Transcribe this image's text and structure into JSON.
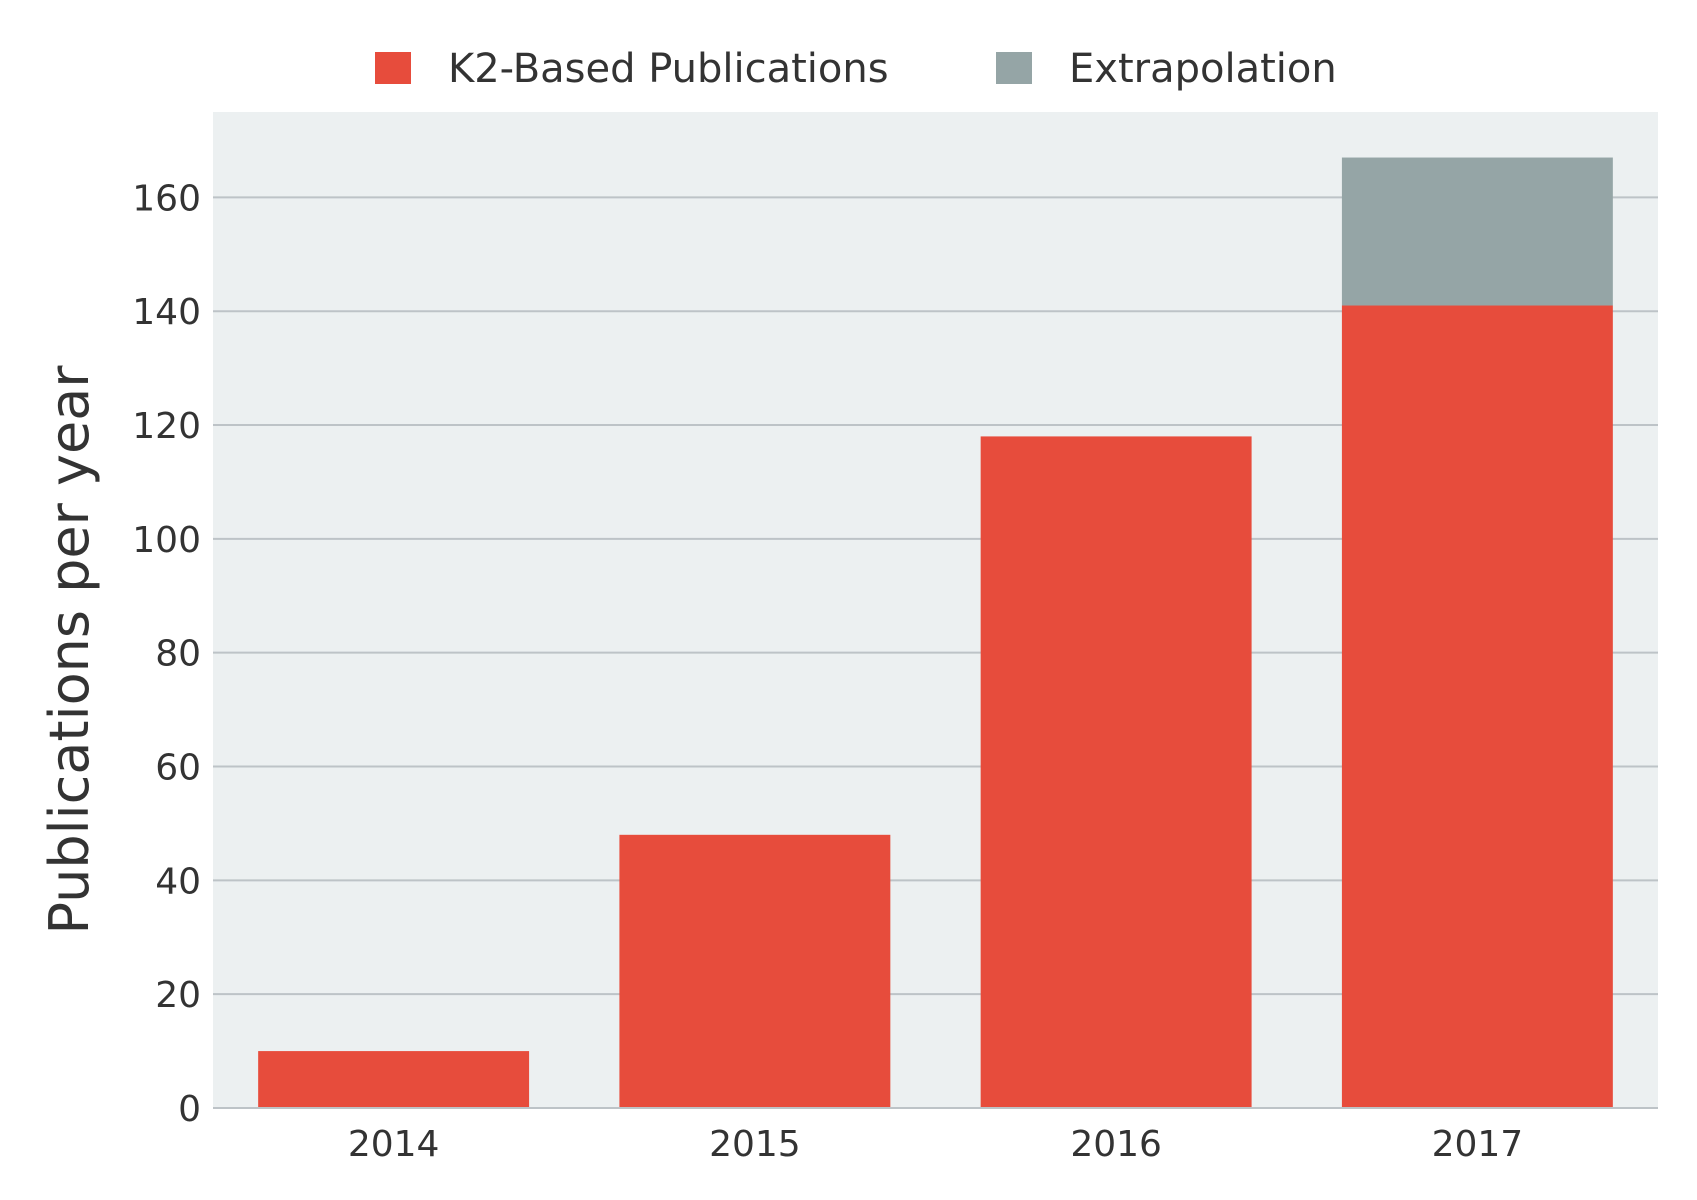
{
  "chart_data": {
    "type": "bar",
    "stacked": true,
    "categories": [
      "2014",
      "2015",
      "2016",
      "2017"
    ],
    "series": [
      {
        "name": "K2-Based Publications",
        "color": "#e74c3c",
        "values": [
          10,
          48,
          118,
          141
        ]
      },
      {
        "name": "Extrapolation",
        "color": "#95a5a6",
        "values": [
          0,
          0,
          0,
          26
        ]
      }
    ],
    "title": "",
    "xlabel": "",
    "ylabel": "Publications per year",
    "ylim": [
      0,
      175
    ],
    "yticks": [
      0,
      20,
      40,
      60,
      80,
      100,
      120,
      140,
      160
    ],
    "grid": true,
    "legend_position": "top-center",
    "plot_background": "#ecf0f1",
    "grid_color": "#bdc3c7"
  }
}
